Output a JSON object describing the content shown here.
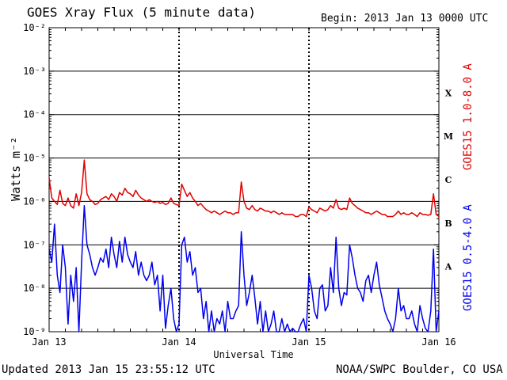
{
  "header": {
    "title": "GOES Xray Flux (5 minute data)",
    "begin": "Begin:  2013 Jan 13 0000 UTC"
  },
  "footer": {
    "updated": "Updated 2013 Jan 15 23:55:12 UTC",
    "source": "NOAA/SWPC Boulder, CO USA"
  },
  "chart_data": {
    "type": "line",
    "title": "GOES Xray Flux (5 minute data)",
    "xlabel": "Universal Time",
    "ylabel": "Watts m⁻²",
    "yscale": "log",
    "ylim": [
      1e-09,
      0.01
    ],
    "xlim": [
      0,
      72
    ],
    "x_unit": "hours since 2013 Jan 13 0000 UTC",
    "x_ticks": [
      {
        "value": 0,
        "label": "Jan 13"
      },
      {
        "value": 24,
        "label": "Jan 14"
      },
      {
        "value": 48,
        "label": "Jan 15"
      },
      {
        "value": 72,
        "label": "Jan 16"
      }
    ],
    "y_ticks": [
      {
        "exp": -9,
        "label": "10⁻⁹"
      },
      {
        "exp": -8,
        "label": "10⁻⁸"
      },
      {
        "exp": -7,
        "label": "10⁻⁷"
      },
      {
        "exp": -6,
        "label": "10⁻⁶"
      },
      {
        "exp": -5,
        "label": "10⁻⁵"
      },
      {
        "exp": -4,
        "label": "10⁻⁴"
      },
      {
        "exp": -3,
        "label": "10⁻³"
      },
      {
        "exp": -2,
        "label": "10⁻²"
      }
    ],
    "flare_classes": [
      {
        "label": "A",
        "exp": -7.5
      },
      {
        "label": "B",
        "exp": -6.5
      },
      {
        "label": "C",
        "exp": -5.5
      },
      {
        "label": "M",
        "exp": -4.5
      },
      {
        "label": "X",
        "exp": -3.5
      }
    ],
    "grid": "horizontal at each decade, dotted vertical at day boundaries",
    "series": [
      {
        "name": "GOES15 1.0-8.0 A",
        "color": "#e00000",
        "x": [
          0,
          0.5,
          1,
          1.5,
          2,
          2.5,
          3,
          3.5,
          4,
          4.5,
          5,
          5.5,
          6,
          6.5,
          7,
          7.5,
          8,
          8.5,
          9,
          9.5,
          10,
          10.5,
          11,
          11.5,
          12,
          12.5,
          13,
          13.5,
          14,
          14.5,
          15,
          15.5,
          16,
          16.5,
          17,
          17.5,
          18,
          18.5,
          19,
          19.5,
          20,
          20.5,
          21,
          21.5,
          22,
          22.5,
          23,
          23.5,
          24,
          24.5,
          25,
          25.5,
          26,
          26.5,
          27,
          27.5,
          28,
          28.5,
          29,
          29.5,
          30,
          30.5,
          31,
          31.5,
          32,
          32.5,
          33,
          33.5,
          34,
          34.5,
          35,
          35.5,
          36,
          36.5,
          37,
          37.5,
          38,
          38.5,
          39,
          39.5,
          40,
          40.5,
          41,
          41.5,
          42,
          42.5,
          43,
          43.5,
          44,
          44.5,
          45,
          45.5,
          46,
          46.5,
          47,
          47.5,
          48,
          48.5,
          49,
          49.5,
          50,
          50.5,
          51,
          51.5,
          52,
          52.5,
          53,
          53.5,
          54,
          54.5,
          55,
          55.5,
          56,
          56.5,
          57,
          57.5,
          58,
          58.5,
          59,
          59.5,
          60,
          60.5,
          61,
          61.5,
          62,
          62.5,
          63,
          63.5,
          64,
          64.5,
          65,
          65.5,
          66,
          66.5,
          67,
          67.5,
          68,
          68.5,
          69,
          69.5,
          70,
          70.5,
          71,
          71.5,
          72
        ],
        "y": [
          3.5e-06,
          1.2e-06,
          1e-06,
          8.5e-07,
          1.8e-06,
          9e-07,
          8e-07,
          1.2e-06,
          8e-07,
          7e-07,
          1.5e-06,
          8e-07,
          1.6e-06,
          9e-06,
          1.5e-06,
          1.1e-06,
          1e-06,
          8.5e-07,
          9e-07,
          1.1e-06,
          1.2e-06,
          1.3e-06,
          1.1e-06,
          1.5e-06,
          1.3e-06,
          1e-06,
          1.6e-06,
          1.4e-06,
          2e-06,
          1.6e-06,
          1.5e-06,
          1.3e-06,
          1.8e-06,
          1.4e-06,
          1.2e-06,
          1.1e-06,
          1e-06,
          1.1e-06,
          1e-06,
          9.5e-07,
          1e-06,
          9e-07,
          9.5e-07,
          8.5e-07,
          9e-07,
          1.2e-06,
          9e-07,
          8.5e-07,
          8e-07,
          2.5e-06,
          1.8e-06,
          1.3e-06,
          1.6e-06,
          1.2e-06,
          1e-06,
          8e-07,
          9e-07,
          7.5e-07,
          6.5e-07,
          6e-07,
          5.5e-07,
          6e-07,
          5.5e-07,
          5e-07,
          5.5e-07,
          6e-07,
          5.5e-07,
          5.5e-07,
          5e-07,
          5.5e-07,
          5.5e-07,
          2.8e-06,
          1e-06,
          7e-07,
          6.5e-07,
          8e-07,
          6.5e-07,
          6e-07,
          7e-07,
          6.5e-07,
          6e-07,
          6e-07,
          5.5e-07,
          6e-07,
          5.5e-07,
          5e-07,
          5.5e-07,
          5e-07,
          5e-07,
          5e-07,
          5e-07,
          4.5e-07,
          4.5e-07,
          5e-07,
          5e-07,
          4.5e-07,
          7.5e-07,
          6.5e-07,
          6e-07,
          5.5e-07,
          7e-07,
          6.5e-07,
          6e-07,
          6.5e-07,
          8e-07,
          7e-07,
          1.1e-06,
          7e-07,
          6.5e-07,
          7e-07,
          6.5e-07,
          1.2e-06,
          9e-07,
          8e-07,
          7e-07,
          6.5e-07,
          6e-07,
          5.5e-07,
          5.5e-07,
          5e-07,
          5.5e-07,
          6e-07,
          5.5e-07,
          5e-07,
          5e-07,
          4.5e-07,
          4.5e-07,
          4.5e-07,
          5e-07,
          6e-07,
          5e-07,
          5.5e-07,
          5e-07,
          5e-07,
          5.5e-07,
          5e-07,
          4.5e-07,
          5.5e-07,
          5e-07,
          5e-07,
          4.8e-07,
          5e-07,
          1.5e-06,
          5e-07,
          4.5e-07
        ]
      },
      {
        "name": "GOES15 0.5-4.0 A",
        "color": "#0000ee",
        "x": [
          0,
          0.5,
          1,
          1.5,
          2,
          2.5,
          3,
          3.5,
          4,
          4.5,
          5,
          5.5,
          6,
          6.5,
          7,
          7.5,
          8,
          8.5,
          9,
          9.5,
          10,
          10.5,
          11,
          11.5,
          12,
          12.5,
          13,
          13.5,
          14,
          14.5,
          15,
          15.5,
          16,
          16.5,
          17,
          17.5,
          18,
          18.5,
          19,
          19.5,
          20,
          20.5,
          21,
          21.5,
          22,
          22.5,
          23,
          23.5,
          24,
          24.5,
          25,
          25.5,
          26,
          26.5,
          27,
          27.5,
          28,
          28.5,
          29,
          29.5,
          30,
          30.5,
          31,
          31.5,
          32,
          32.5,
          33,
          33.5,
          34,
          34.5,
          35,
          35.5,
          36,
          36.5,
          37,
          37.5,
          38,
          38.5,
          39,
          39.5,
          40,
          40.5,
          41,
          41.5,
          42,
          42.5,
          43,
          43.5,
          44,
          44.5,
          45,
          45.5,
          46,
          46.5,
          47,
          47.5,
          48,
          48.5,
          49,
          49.5,
          50,
          50.5,
          51,
          51.5,
          52,
          52.5,
          53,
          53.5,
          54,
          54.5,
          55,
          55.5,
          56,
          56.5,
          57,
          57.5,
          58,
          58.5,
          59,
          59.5,
          60,
          60.5,
          61,
          61.5,
          62,
          62.5,
          63,
          63.5,
          64,
          64.5,
          65,
          65.5,
          66,
          66.5,
          67,
          67.5,
          68,
          68.5,
          69,
          69.5,
          70,
          70.5,
          71,
          71.5,
          72
        ],
        "y": [
          8e-08,
          4e-08,
          3e-07,
          2e-08,
          8e-09,
          1e-07,
          3e-08,
          1.5e-09,
          2e-08,
          5e-09,
          3e-08,
          1e-09,
          4e-08,
          8e-07,
          1e-07,
          6e-08,
          3e-08,
          2e-08,
          3e-08,
          5e-08,
          4e-08,
          8e-08,
          3e-08,
          1.5e-07,
          6e-08,
          3e-08,
          1.2e-07,
          4e-08,
          1.5e-07,
          6e-08,
          4e-08,
          3e-08,
          7e-08,
          2e-08,
          4e-08,
          2e-08,
          1.5e-08,
          2e-08,
          4e-08,
          1.2e-08,
          2e-08,
          3e-09,
          2e-08,
          1.2e-09,
          4e-09,
          1e-08,
          2e-09,
          1e-09,
          1.5e-09,
          1e-07,
          1.5e-07,
          4e-08,
          7e-08,
          2e-08,
          3e-08,
          8e-09,
          1e-08,
          2e-09,
          5e-09,
          1e-09,
          3e-09,
          1e-09,
          2e-09,
          1.5e-09,
          3e-09,
          1e-09,
          5e-09,
          2e-09,
          2e-09,
          3e-09,
          4e-09,
          2e-07,
          2e-08,
          4e-09,
          8e-09,
          2e-08,
          6e-09,
          1.5e-09,
          5e-09,
          1e-09,
          3e-09,
          1e-09,
          1.5e-09,
          3e-09,
          1e-09,
          1e-09,
          2e-09,
          1e-09,
          1.5e-09,
          1e-09,
          1.2e-09,
          1e-09,
          1e-09,
          1.5e-09,
          2e-09,
          1e-09,
          2e-08,
          1e-08,
          3e-09,
          2e-09,
          1e-08,
          1.2e-08,
          3e-09,
          4e-09,
          3e-08,
          8e-09,
          1.5e-07,
          1e-08,
          4e-09,
          8e-09,
          7e-09,
          1e-07,
          5e-08,
          2e-08,
          1e-08,
          8e-09,
          5e-09,
          1.5e-08,
          2e-08,
          8e-09,
          2e-08,
          4e-08,
          1.2e-08,
          6e-09,
          3e-09,
          2e-09,
          1.5e-09,
          1e-09,
          2e-09,
          1e-08,
          3e-09,
          4e-09,
          2e-09,
          2e-09,
          3e-09,
          1.5e-09,
          1e-09,
          4e-09,
          2e-09,
          1.2e-09,
          1e-09,
          3e-09,
          8e-08,
          1e-09,
          3e-09
        ]
      }
    ]
  }
}
